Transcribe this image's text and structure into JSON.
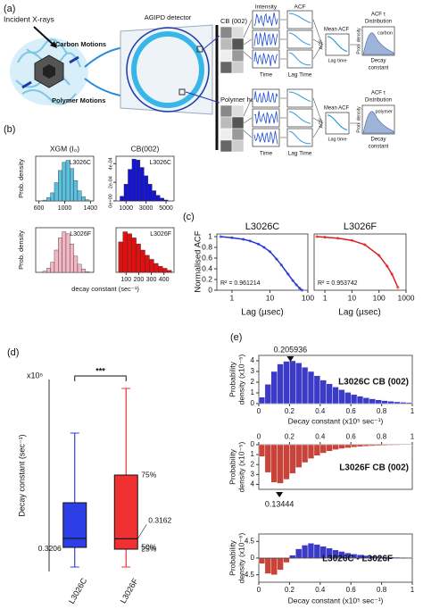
{
  "panels": [
    "(a)",
    "(b)",
    "(c)",
    "(d)",
    "(e)"
  ],
  "diagram": {
    "incident": "Incident X-rays",
    "carbon": "Carbon Motions",
    "polymer": "Polymer Motions",
    "detector": "AGIPD detector",
    "cb": "CB (002)",
    "halo": "Polymer halo",
    "intensity": "Intensity",
    "acf": "ACF",
    "time": "Time",
    "lag_time": "Lag Time",
    "mean_acf": "Mean ACF",
    "acf_tau": "ACF τ",
    "distribution": "Distribution",
    "lag_time_small": "Lag time",
    "prob": "Prob. density",
    "decay": "Decay",
    "constant": "constant",
    "carbon_label": "carbon",
    "polymer_label": "polymer"
  },
  "panel_b": {
    "xlabel": "decay constant (sec⁻¹)"
  },
  "chart_data": [
    {
      "type": "histogram",
      "title": "XGM (I₀)",
      "label": "L3026C",
      "ylabel": "Prob. density",
      "color": "#5bc0de",
      "bins": [
        660,
        720,
        780,
        840,
        900,
        960,
        1020,
        1080,
        1140,
        1200,
        1260,
        1320,
        1380
      ],
      "values": [
        0.02,
        0.08,
        0.2,
        0.45,
        0.75,
        0.95,
        1.0,
        0.8,
        0.5,
        0.25,
        0.1,
        0.03
      ],
      "xlim": [
        550,
        1450
      ],
      "xticks": [
        600,
        1000,
        1400
      ],
      "ylim": [
        0,
        1.1
      ]
    },
    {
      "type": "histogram",
      "title": "CB(002)",
      "label": "L3026C",
      "color": "#1414d2",
      "bins": [
        400,
        800,
        1200,
        1600,
        2000,
        2400,
        2800,
        3200,
        3600,
        4000,
        4400,
        4800,
        5200
      ],
      "values": [
        5e-05,
        0.00018,
        0.00034,
        0.00045,
        0.00044,
        0.00036,
        0.00027,
        0.00018,
        0.00011,
        6e-05,
        3e-05,
        1e-05
      ],
      "xlim": [
        0,
        5800
      ],
      "xticks": [
        1000,
        3000,
        5000
      ],
      "ylim": [
        0,
        0.00048
      ],
      "yticks": [
        {
          "value": 0,
          "label": "0e+00"
        },
        {
          "value": 0.0002,
          "label": "2e-04"
        },
        {
          "value": 0.0004,
          "label": "4e-04"
        }
      ]
    },
    {
      "type": "histogram",
      "label": "L3026F",
      "ylabel": "Prob. density",
      "color": "#f4b6c2",
      "bins": [
        660,
        720,
        780,
        840,
        900,
        960,
        1020,
        1080,
        1140,
        1200,
        1260,
        1320,
        1380
      ],
      "values": [
        0.03,
        0.1,
        0.25,
        0.55,
        0.85,
        1.0,
        0.95,
        0.7,
        0.4,
        0.2,
        0.08,
        0.02
      ],
      "xlim": [
        550,
        1450
      ],
      "ylim": [
        0,
        1.1
      ]
    },
    {
      "type": "histogram",
      "label": "L3026F",
      "color": "#e01010",
      "bins": [
        40,
        75,
        110,
        145,
        180,
        215,
        250,
        285,
        320,
        355,
        390,
        425,
        460
      ],
      "values": [
        0.75,
        1.0,
        0.95,
        0.85,
        0.7,
        0.55,
        0.42,
        0.32,
        0.22,
        0.15,
        0.1,
        0.05
      ],
      "xlim": [
        20,
        480
      ],
      "xticks": [
        100,
        200,
        300,
        400
      ],
      "ylim": [
        0,
        1.1
      ]
    },
    {
      "type": "line",
      "title": "L3026C",
      "ylabel": "Normalised ACF",
      "xlabel": "Lag (µsec)",
      "annotation": "R² = 0.961214",
      "color": "#2233cc",
      "xlog": true,
      "x": [
        0.5,
        1,
        2,
        3,
        5,
        7,
        10,
        15,
        20,
        30,
        40,
        50,
        60,
        70
      ],
      "values": [
        1.0,
        0.98,
        0.95,
        0.92,
        0.86,
        0.8,
        0.72,
        0.58,
        0.47,
        0.3,
        0.18,
        0.1,
        0.04,
        0.0
      ],
      "xlim": [
        0.4,
        100
      ],
      "xticks": [
        1,
        10,
        100
      ],
      "ylim": [
        0,
        1.05
      ],
      "yticks": [
        0,
        0.2,
        0.4,
        0.6,
        0.8,
        1
      ]
    },
    {
      "type": "line",
      "title": "L3026F",
      "xlabel": "Lag (µsec)",
      "annotation": "R² = 0.953742",
      "color": "#e01b1b",
      "xlog": true,
      "x": [
        0.5,
        1,
        3,
        10,
        30,
        100,
        200,
        300,
        500
      ],
      "values": [
        1.0,
        0.99,
        0.97,
        0.93,
        0.85,
        0.65,
        0.45,
        0.3,
        0.05
      ],
      "xlim": [
        0.4,
        1000
      ],
      "xticks": [
        1,
        10,
        100,
        1000
      ],
      "ylim": [
        0,
        1.05
      ]
    },
    {
      "type": "box",
      "categories": [
        "L3026C",
        "L3026F"
      ],
      "ylabel": "Decay constant (sec⁻¹)",
      "multiplier": "x10⁵",
      "significance": "***",
      "percent_labels": [
        "75%",
        "50%",
        "25%"
      ],
      "boxes": [
        {
          "min": 0,
          "q1": 0.22,
          "median": 0.3206,
          "q3": 0.72,
          "max": 1.5,
          "color": "#2e3ee6"
        },
        {
          "min": 0,
          "q1": 0.2,
          "median": 0.3162,
          "q3": 1.03,
          "max": 2.0,
          "color": "#f03030"
        }
      ],
      "ylim": [
        -0.05,
        2.1
      ]
    },
    {
      "type": "histogram",
      "label": "L3026C CB (002)",
      "ylabel": [
        "Probability",
        "density (x10⁻⁵)"
      ],
      "xlabel": "Decay constant (x10⁵ sec⁻¹)",
      "peak": 0.205936,
      "color": "#3b3bc8",
      "bins": [
        0,
        0.04,
        0.08,
        0.12,
        0.16,
        0.2,
        0.24,
        0.28,
        0.32,
        0.36,
        0.4,
        0.44,
        0.48,
        0.52,
        0.56,
        0.6,
        0.64,
        0.68,
        0.72,
        0.76,
        0.8,
        0.84,
        0.88,
        0.92,
        0.96,
        1
      ],
      "values": [
        0.6,
        1.8,
        3.0,
        3.7,
        3.95,
        4.0,
        3.8,
        3.4,
        3.0,
        2.6,
        2.2,
        1.85,
        1.55,
        1.3,
        1.05,
        0.85,
        0.7,
        0.55,
        0.45,
        0.35,
        0.28,
        0.22,
        0.17,
        0.13,
        0.1
      ],
      "xlim": [
        0,
        1
      ],
      "xticks": [
        0,
        0.2,
        0.4,
        0.6,
        0.8,
        1
      ],
      "ylim": [
        0,
        4.5
      ],
      "yticks": [
        0,
        1,
        2,
        3,
        4
      ]
    },
    {
      "type": "histogram",
      "label": "L3026F CB (002)",
      "ylabel": [
        "Probability",
        "density (x10⁻⁵)"
      ],
      "peak": 0.13444,
      "x_axis": "top",
      "color": "#c8443a",
      "bins": [
        0,
        0.04,
        0.08,
        0.12,
        0.16,
        0.2,
        0.24,
        0.28,
        0.32,
        0.36,
        0.4,
        0.44,
        0.48,
        0.52,
        0.56,
        0.6,
        0.64,
        0.68,
        0.72,
        0.76,
        0.8,
        0.84,
        0.88,
        0.92,
        0.96,
        1
      ],
      "values": [
        1.2,
        2.8,
        3.8,
        3.9,
        3.5,
        2.9,
        2.3,
        1.8,
        1.4,
        1.1,
        0.85,
        0.65,
        0.5,
        0.4,
        0.32,
        0.25,
        0.2,
        0.16,
        0.13,
        0.1,
        0.08,
        0.06,
        0.05,
        0.04,
        0.03
      ],
      "xlim": [
        0,
        1
      ],
      "xticks": [
        0,
        0.2,
        0.4,
        0.6,
        0.8,
        1
      ],
      "ylim": [
        4.5,
        0
      ],
      "yticks": [
        0,
        1,
        2,
        3,
        4
      ]
    },
    {
      "type": "histogram",
      "label": "L3026C - L3026F",
      "ylabel": [
        "Probability",
        "density (x10⁻⁶)"
      ],
      "xlabel": "Decay constant (x10⁵ sec⁻¹)",
      "color": "#3b3bc8",
      "negative_color": "#c8443a",
      "bins": [
        0,
        0.04,
        0.08,
        0.12,
        0.16,
        0.2,
        0.24,
        0.28,
        0.32,
        0.36,
        0.4,
        0.44,
        0.48,
        0.52,
        0.56,
        0.6,
        0.64,
        0.68,
        0.72,
        0.76,
        0.8,
        0.84,
        0.88,
        0.92,
        0.96,
        1
      ],
      "values": [
        -1.5,
        -4.2,
        -4.5,
        -3.2,
        -1.2,
        0.8,
        2.5,
        3.5,
        4.0,
        3.7,
        3.2,
        2.7,
        2.2,
        1.8,
        1.4,
        1.1,
        0.9,
        0.7,
        0.55,
        0.45,
        0.35,
        0.28,
        0.22,
        0.17,
        0.13
      ],
      "xlim": [
        0,
        1
      ],
      "xticks": [
        0,
        0.2,
        0.4,
        0.6,
        0.8,
        1
      ],
      "ylim": [
        -6.5,
        6.5
      ],
      "yticks": [
        -4.5,
        0,
        4.5
      ]
    }
  ]
}
